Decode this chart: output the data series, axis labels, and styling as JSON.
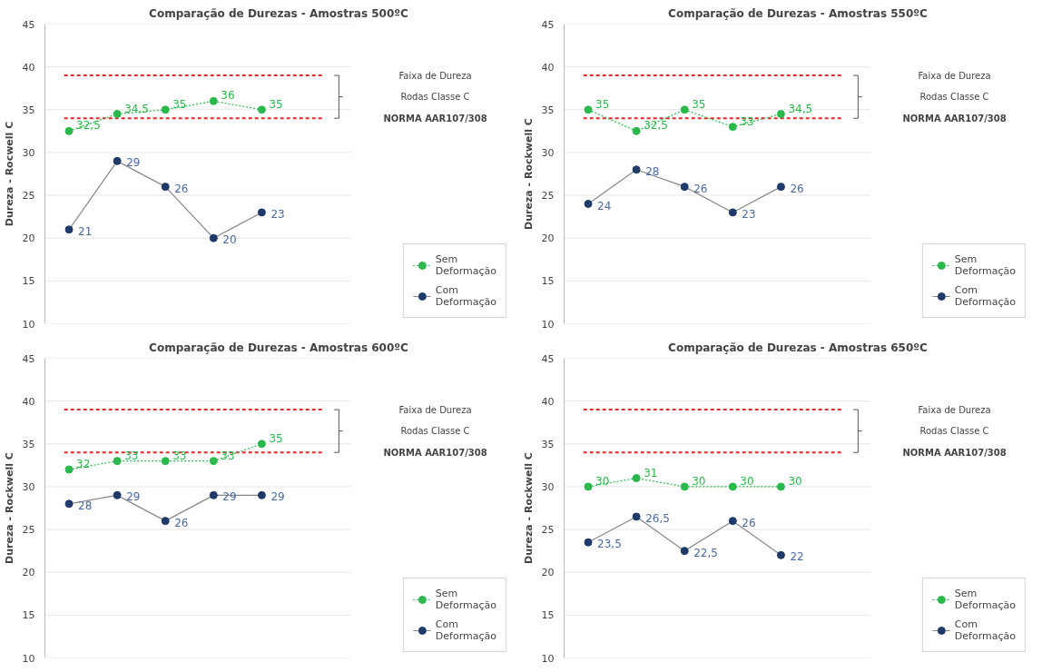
{
  "chart_data": [
    {
      "type": "line",
      "title": "Comparação de Durezas - Amostras 500ºC",
      "ylabel": "Dureza - Rocwell C",
      "categories": [
        null,
        null,
        null,
        null,
        null
      ],
      "ylim": [
        10,
        45
      ],
      "yticks": [
        10,
        15,
        20,
        25,
        30,
        35,
        40,
        45
      ],
      "grid": "y",
      "legend": "bottom right",
      "marker": "circle",
      "tick_labels": "y",
      "ref_lines": [
        {
          "axis": "y",
          "value": 39,
          "color": "#e02b2b",
          "line_style": "dashed"
        },
        {
          "axis": "y",
          "value": 34,
          "color": "#e02b2b",
          "line_style": "dashed"
        }
      ],
      "annotations": [
        "Faixa de Dureza",
        "Rodas Classe C",
        "NORMA AAR107/308"
      ],
      "series": [
        {
          "name": "Sem Deformação",
          "color": "#2bb84c",
          "line_style": "dotted",
          "values": [
            32.5,
            34.5,
            35,
            36,
            35
          ],
          "value_labels": [
            "32,5",
            "34,5",
            "35",
            "36",
            "35"
          ]
        },
        {
          "name": "Com Deformação",
          "color": "#1f3a68",
          "line_style": "solid",
          "values": [
            21,
            29,
            26,
            20,
            23
          ],
          "value_labels": [
            "21",
            "29",
            "26",
            "20",
            "23"
          ]
        }
      ]
    },
    {
      "type": "line",
      "title": "Comparação de Durezas - Amostras 550ºC",
      "ylabel": "Dureza - Rockwell C",
      "categories": [
        null,
        null,
        null,
        null,
        null
      ],
      "ylim": [
        10,
        45
      ],
      "yticks": [
        10,
        15,
        20,
        25,
        30,
        35,
        40,
        45
      ],
      "grid": "y",
      "legend": "bottom right",
      "marker": "circle",
      "tick_labels": "y",
      "ref_lines": [
        {
          "axis": "y",
          "value": 39,
          "color": "#e02b2b",
          "line_style": "dashed"
        },
        {
          "axis": "y",
          "value": 34,
          "color": "#e02b2b",
          "line_style": "dashed"
        }
      ],
      "annotations": [
        "Faixa de Dureza",
        "Rodas Classe C",
        "NORMA AAR107/308"
      ],
      "series": [
        {
          "name": "Sem Deformação",
          "color": "#2bb84c",
          "line_style": "dotted",
          "values": [
            35,
            32.5,
            35,
            33,
            34.5
          ],
          "value_labels": [
            "35",
            "32,5",
            "35",
            "33",
            "34,5"
          ]
        },
        {
          "name": "Com Deformação",
          "color": "#1f3a68",
          "line_style": "solid",
          "values": [
            24,
            28,
            26,
            23,
            26
          ],
          "value_labels": [
            "24",
            "28",
            "26",
            "23",
            "26"
          ]
        }
      ]
    },
    {
      "type": "line",
      "title": "Comparação de Durezas - Amostras 600ºC",
      "ylabel": "Dureza - Rockwell C",
      "categories": [
        null,
        null,
        null,
        null,
        null
      ],
      "ylim": [
        10,
        45
      ],
      "yticks": [
        10,
        15,
        20,
        25,
        30,
        35,
        40,
        45
      ],
      "grid": "y",
      "legend": "bottom right",
      "marker": "circle",
      "tick_labels": "y",
      "ref_lines": [
        {
          "axis": "y",
          "value": 39,
          "color": "#e02b2b",
          "line_style": "dashed"
        },
        {
          "axis": "y",
          "value": 34,
          "color": "#e02b2b",
          "line_style": "dashed"
        }
      ],
      "annotations": [
        "Faixa de Dureza",
        "Rodas Classe C",
        "NORMA AAR107/308"
      ],
      "series": [
        {
          "name": "Sem Deformação",
          "color": "#2bb84c",
          "line_style": "dotted",
          "values": [
            32,
            33,
            33,
            33,
            35
          ],
          "value_labels": [
            "32",
            "33",
            "33",
            "33",
            "35"
          ]
        },
        {
          "name": "Com Deformação",
          "color": "#1f3a68",
          "line_style": "solid",
          "values": [
            28,
            29,
            26,
            29,
            29
          ],
          "value_labels": [
            "28",
            "29",
            "26",
            "29",
            "29"
          ]
        }
      ]
    },
    {
      "type": "line",
      "title": "Comparação de Durezas - Amostras 650ºC",
      "ylabel": "Dureza - Rockwell C",
      "categories": [
        null,
        null,
        null,
        null,
        null
      ],
      "ylim": [
        10,
        45
      ],
      "yticks": [
        10,
        15,
        20,
        25,
        30,
        35,
        40,
        45
      ],
      "grid": "y",
      "legend": "bottom right",
      "marker": "circle",
      "tick_labels": "y",
      "ref_lines": [
        {
          "axis": "y",
          "value": 39,
          "color": "#e02b2b",
          "line_style": "dashed"
        },
        {
          "axis": "y",
          "value": 34,
          "color": "#e02b2b",
          "line_style": "dashed"
        }
      ],
      "annotations": [
        "Faixa de Dureza",
        "Rodas Classe C",
        "NORMA AAR107/308"
      ],
      "series": [
        {
          "name": "Sem Deformação",
          "color": "#2bb84c",
          "line_style": "dotted",
          "values": [
            30,
            31,
            30,
            30,
            30
          ],
          "value_labels": [
            "30",
            "31",
            "30",
            "30",
            "30"
          ]
        },
        {
          "name": "Com Deformação",
          "color": "#1f3a68",
          "line_style": "solid",
          "values": [
            23.5,
            26.5,
            22.5,
            26,
            22
          ],
          "value_labels": [
            "23,5",
            "26,5",
            "22,5",
            "26",
            "22"
          ]
        }
      ]
    }
  ]
}
